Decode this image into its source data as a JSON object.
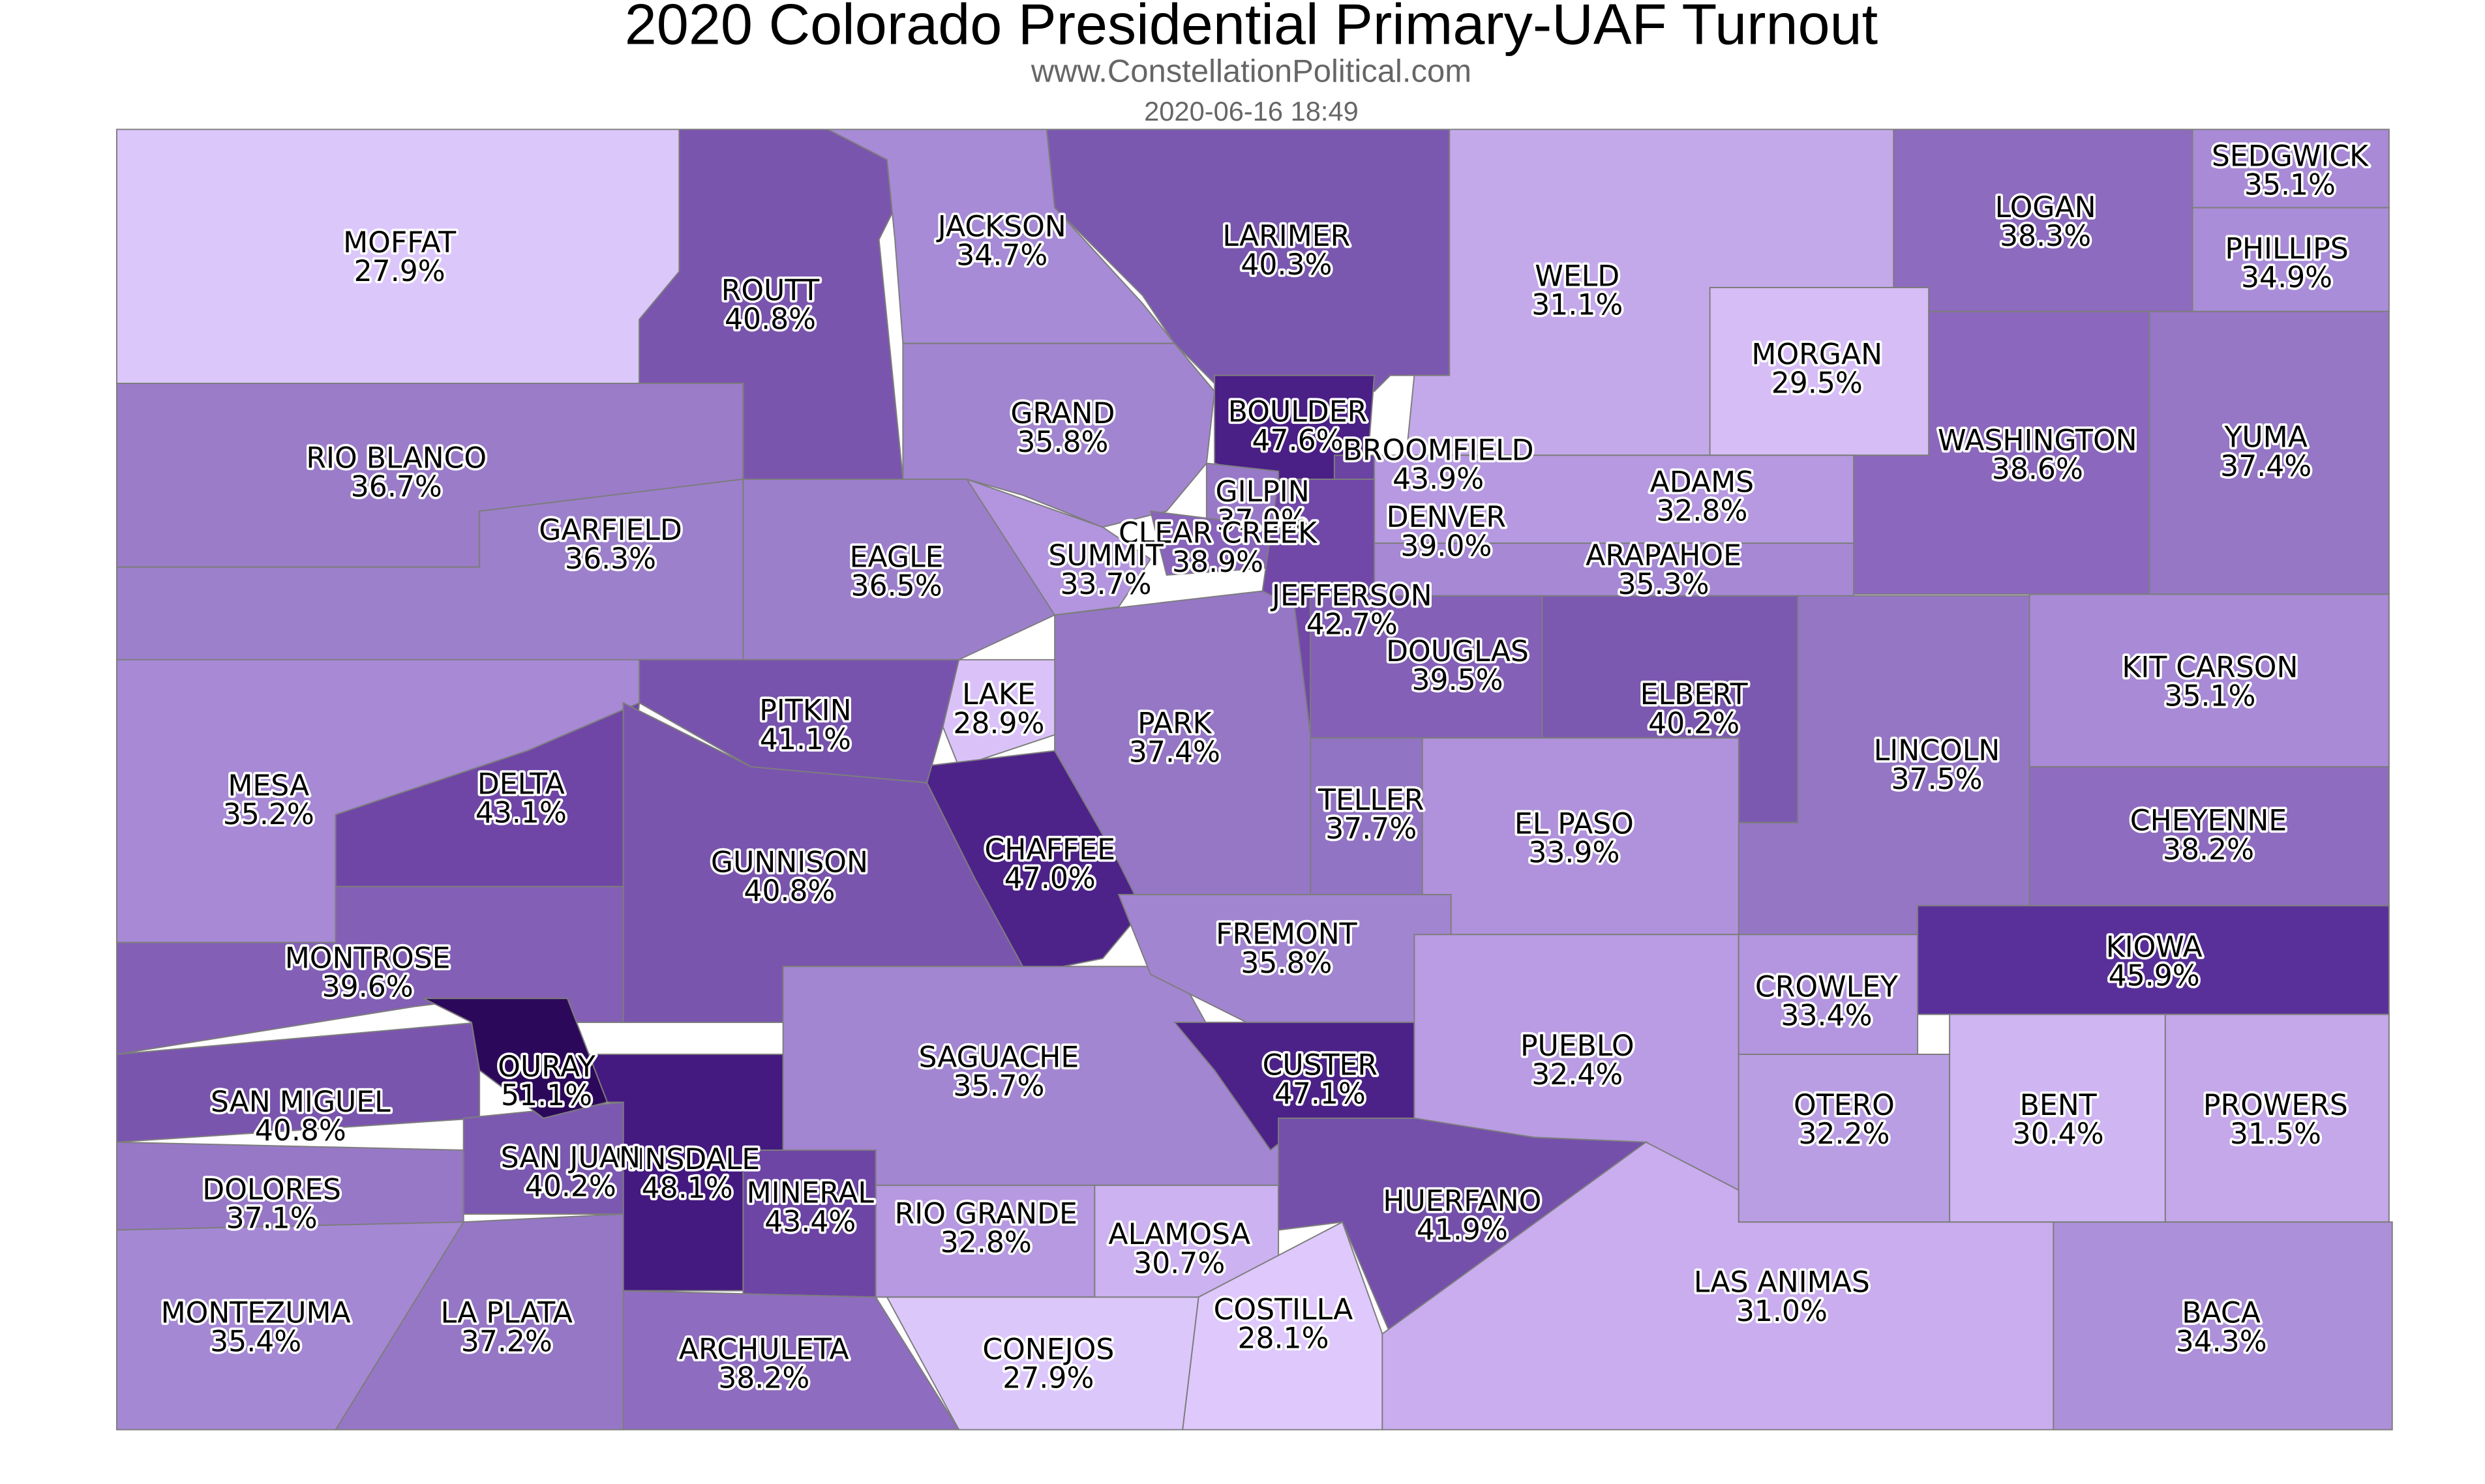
{
  "header": {
    "title": "2020 Colorado Presidential Primary-UAF Turnout",
    "subtitle": "www.ConstellationPolitical.com",
    "timestamp": "2020-06-16 18:49"
  },
  "counties": [
    {
      "name": "MOFFAT",
      "turnout": "27.9%",
      "color": "#dcc7fb"
    },
    {
      "name": "ROUTT",
      "turnout": "40.8%",
      "color": "#7a55ae"
    },
    {
      "name": "JACKSON",
      "turnout": "34.7%",
      "color": "#a78bd6"
    },
    {
      "name": "LARIMER",
      "turnout": "40.3%",
      "color": "#7b58b0"
    },
    {
      "name": "WELD",
      "turnout": "31.1%",
      "color": "#c4a9ea"
    },
    {
      "name": "MORGAN",
      "turnout": "29.5%",
      "color": "#d6bdf6"
    },
    {
      "name": "LOGAN",
      "turnout": "38.3%",
      "color": "#8d6bbf"
    },
    {
      "name": "SEDGWICK",
      "turnout": "35.1%",
      "color": "#a88ad6"
    },
    {
      "name": "PHILLIPS",
      "turnout": "34.9%",
      "color": "#aa8dd8"
    },
    {
      "name": "WASHINGTON",
      "turnout": "38.6%",
      "color": "#8b68bd"
    },
    {
      "name": "YUMA",
      "turnout": "37.4%",
      "color": "#9577c6"
    },
    {
      "name": "RIO BLANCO",
      "turnout": "36.7%",
      "color": "#9a7cc9"
    },
    {
      "name": "GARFIELD",
      "turnout": "36.3%",
      "color": "#9d80cc"
    },
    {
      "name": "EAGLE",
      "turnout": "36.5%",
      "color": "#9c7fcb"
    },
    {
      "name": "GRAND",
      "turnout": "35.8%",
      "color": "#a285d0"
    },
    {
      "name": "BOULDER",
      "turnout": "47.6%",
      "color": "#4a1f86"
    },
    {
      "name": "BROOMFIELD",
      "turnout": "43.9%",
      "color": "#6b43a3"
    },
    {
      "name": "GILPIN",
      "turnout": "37.0%",
      "color": "#9879c8"
    },
    {
      "name": "CLEAR CREEK",
      "turnout": "38.9%",
      "color": "#8864bb"
    },
    {
      "name": "SUMMIT",
      "turnout": "33.7%",
      "color": "#b295de"
    },
    {
      "name": "DENVER",
      "turnout": "39.0%",
      "color": "#8863ba"
    },
    {
      "name": "ADAMS",
      "turnout": "32.8%",
      "color": "#b699e1"
    },
    {
      "name": "ARAPAHOE",
      "turnout": "35.3%",
      "color": "#a688d5"
    },
    {
      "name": "JEFFERSON",
      "turnout": "42.7%",
      "color": "#7148a8"
    },
    {
      "name": "DOUGLAS",
      "turnout": "39.5%",
      "color": "#8460b7"
    },
    {
      "name": "ELBERT",
      "turnout": "40.2%",
      "color": "#7c59b0"
    },
    {
      "name": "LINCOLN",
      "turnout": "37.5%",
      "color": "#9476c5"
    },
    {
      "name": "KIT CARSON",
      "turnout": "35.1%",
      "color": "#a88ad6"
    },
    {
      "name": "CHEYENNE",
      "turnout": "38.2%",
      "color": "#8e6cbf"
    },
    {
      "name": "KIOWA",
      "turnout": "45.9%",
      "color": "#59309a"
    },
    {
      "name": "EL PASO",
      "turnout": "33.9%",
      "color": "#b092dc"
    },
    {
      "name": "TELLER",
      "turnout": "37.7%",
      "color": "#9274c4"
    },
    {
      "name": "PARK",
      "turnout": "37.4%",
      "color": "#9577c6"
    },
    {
      "name": "LAKE",
      "turnout": "28.9%",
      "color": "#dac2f9"
    },
    {
      "name": "CHAFFEE",
      "turnout": "47.0%",
      "color": "#4d2389"
    },
    {
      "name": "PITKIN",
      "turnout": "41.1%",
      "color": "#7753ad"
    },
    {
      "name": "MESA",
      "turnout": "35.2%",
      "color": "#a789d6"
    },
    {
      "name": "DELTA",
      "turnout": "43.1%",
      "color": "#6f46a6"
    },
    {
      "name": "GUNNISON",
      "turnout": "40.8%",
      "color": "#7a55ae"
    },
    {
      "name": "MONTROSE",
      "turnout": "39.6%",
      "color": "#835fb6"
    },
    {
      "name": "SAN MIGUEL",
      "turnout": "40.8%",
      "color": "#7a55ae"
    },
    {
      "name": "HINSDALE",
      "turnout": "48.1%",
      "color": "#441a80"
    },
    {
      "name": "SAN JUAN",
      "turnout": "40.2%",
      "color": "#7c59b0"
    },
    {
      "name": "OURAY",
      "turnout": "51.1%",
      "color": "#2c085a"
    },
    {
      "name": "MINERAL",
      "turnout": "43.4%",
      "color": "#6d45a5"
    },
    {
      "name": "SAGUACHE",
      "turnout": "35.7%",
      "color": "#a386d1"
    },
    {
      "name": "FREMONT",
      "turnout": "35.8%",
      "color": "#a285d0"
    },
    {
      "name": "CUSTER",
      "turnout": "47.1%",
      "color": "#4c2288"
    },
    {
      "name": "PUEBLO",
      "turnout": "32.4%",
      "color": "#b99ce3"
    },
    {
      "name": "CROWLEY",
      "turnout": "33.4%",
      "color": "#b396df"
    },
    {
      "name": "OTERO",
      "turnout": "32.2%",
      "color": "#ba9ee4"
    },
    {
      "name": "BENT",
      "turnout": "30.4%",
      "color": "#cfb5f2"
    },
    {
      "name": "PROWERS",
      "turnout": "31.5%",
      "color": "#c4a8ea"
    },
    {
      "name": "RIO GRANDE",
      "turnout": "32.8%",
      "color": "#b699e1"
    },
    {
      "name": "ALAMOSA",
      "turnout": "30.7%",
      "color": "#ccb2f0"
    },
    {
      "name": "HUERFANO",
      "turnout": "41.9%",
      "color": "#7450aa"
    },
    {
      "name": "COSTILLA",
      "turnout": "28.1%",
      "color": "#dec8fc"
    },
    {
      "name": "CONEJOS",
      "turnout": "27.9%",
      "color": "#dcc7fb"
    },
    {
      "name": "LAS ANIMAS",
      "turnout": "31.0%",
      "color": "#c9adee"
    },
    {
      "name": "BACA",
      "turnout": "34.3%",
      "color": "#ad90da"
    },
    {
      "name": "DOLORES",
      "turnout": "37.1%",
      "color": "#9778c7"
    },
    {
      "name": "MONTEZUMA",
      "turnout": "35.4%",
      "color": "#a588d4"
    },
    {
      "name": "LA PLATA",
      "turnout": "37.2%",
      "color": "#9677c6"
    },
    {
      "name": "ARCHULETA",
      "turnout": "38.2%",
      "color": "#8e6cbf"
    }
  ]
}
